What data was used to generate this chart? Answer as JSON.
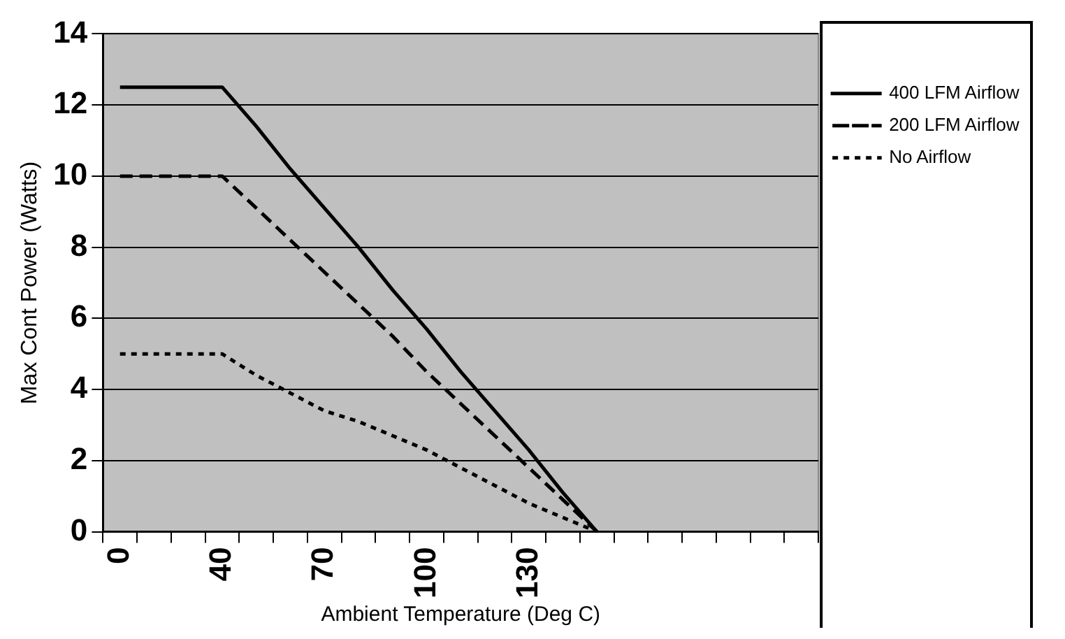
{
  "chart_data": {
    "type": "line",
    "xlabel": "Ambient Temperature (Deg C)",
    "ylabel": "Max Cont Power (Watts)",
    "categories": [
      "0",
      null,
      null,
      "40",
      null,
      null,
      "70",
      null,
      null,
      "100",
      null,
      null,
      "130",
      null,
      null,
      null,
      null,
      null,
      null,
      null,
      null
    ],
    "series": [
      {
        "name": "400 LFM Airflow",
        "color": "#000000",
        "line_style": "solid",
        "values": [
          12.5,
          12.5,
          12.5,
          12.5,
          11.4,
          10.2,
          9.1,
          8.0,
          6.8,
          5.7,
          4.5,
          3.4,
          2.3,
          1.1,
          0,
          null,
          null,
          null,
          null,
          null,
          null
        ]
      },
      {
        "name": "200 LFM Airflow",
        "color": "#000000",
        "line_style": "dashed",
        "values": [
          10,
          10,
          10,
          10,
          9.1,
          8.2,
          7.3,
          6.4,
          5.5,
          4.5,
          3.6,
          2.7,
          1.8,
          0.9,
          0,
          null,
          null,
          null,
          null,
          null,
          null
        ]
      },
      {
        "name": "No Airflow",
        "color": "#000000",
        "line_style": "dotted",
        "values": [
          5,
          5,
          5,
          5,
          4.4,
          3.9,
          3.4,
          3.1,
          2.7,
          2.3,
          1.8,
          1.3,
          0.8,
          0.4,
          0,
          null,
          null,
          null,
          null,
          null,
          null
        ]
      }
    ],
    "ylim": [
      0,
      14
    ],
    "yticks": [
      0,
      2,
      4,
      6,
      8,
      10,
      12,
      14
    ],
    "grid": "y",
    "legend": "right",
    "marker": "none"
  }
}
